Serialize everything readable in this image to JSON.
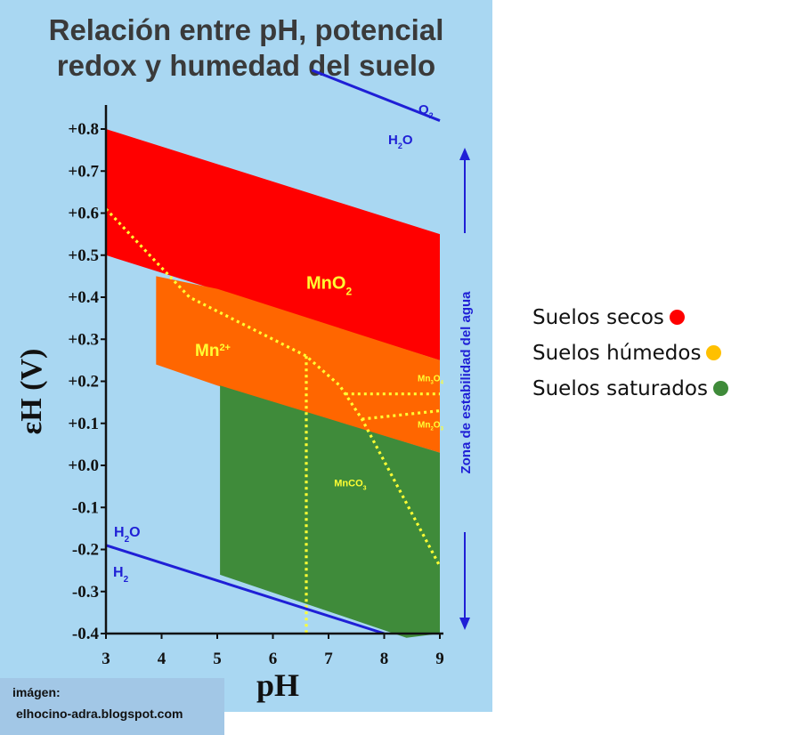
{
  "title_line1": "Relación entre pH, potencial",
  "title_line2": "redox y humedad del suelo",
  "chart_data": {
    "type": "area",
    "xlabel": "pH",
    "ylabel": "εH (V)",
    "xlim": [
      3,
      9
    ],
    "ylim": [
      -0.4,
      0.8
    ],
    "x_ticks": [
      "3",
      "4",
      "5",
      "6",
      "7",
      "8",
      "9"
    ],
    "y_ticks": [
      "+0.8",
      "+0.7",
      "+0.6",
      "+0.5",
      "+0.4",
      "+0.3",
      "+0.2",
      "+0.1",
      "+0.0",
      "-0.1",
      "-0.2",
      "-0.3",
      "-0.4"
    ],
    "regions": [
      {
        "label": "MnO",
        "sub": "2",
        "color": "#ff0000",
        "polygon": [
          [
            3,
            0.8
          ],
          [
            9,
            0.55
          ],
          [
            9,
            0.25
          ],
          [
            3,
            0.5
          ]
        ]
      },
      {
        "label": "Mn",
        "sup": "2+",
        "color": "#ff6600",
        "polygon": [
          [
            3.9,
            0.45
          ],
          [
            5,
            0.42
          ],
          [
            9,
            0.25
          ],
          [
            9,
            0.03
          ],
          [
            5,
            0.19
          ],
          [
            3.9,
            0.24
          ]
        ]
      },
      {
        "label": "MnCO",
        "sub": "3",
        "color": "#3f8b3a",
        "polygon": [
          [
            5.05,
            0.19
          ],
          [
            9,
            0.03
          ],
          [
            9,
            -0.4
          ],
          [
            8.4,
            -0.41
          ],
          [
            5.05,
            -0.26
          ]
        ]
      }
    ],
    "small_labels": [
      {
        "text": "Mn",
        "sub": "3",
        "tail": "O",
        "tail_sub": "4",
        "x": 8.6,
        "y": 0.2
      },
      {
        "text": "Mn",
        "sub": "2",
        "tail": "O",
        "tail_sub": "3",
        "x": 8.6,
        "y": 0.09
      }
    ],
    "dotted_boundaries": [
      [
        [
          3,
          0.61
        ],
        [
          4.5,
          0.4
        ],
        [
          6.6,
          0.26
        ],
        [
          7.2,
          0.19
        ],
        [
          7.6,
          0.11
        ],
        [
          9,
          -0.24
        ]
      ],
      [
        [
          6.6,
          0.26
        ],
        [
          6.6,
          -0.4
        ]
      ],
      [
        [
          7.3,
          0.17
        ],
        [
          9,
          0.17
        ]
      ],
      [
        [
          7.6,
          0.11
        ],
        [
          9,
          0.13
        ]
      ]
    ],
    "water_lines": [
      {
        "top": "O",
        "top_sub": "2",
        "bottom": "H",
        "bottom_sub": "2",
        "bottom_tail": "O",
        "points": [
          [
            6.7,
            0.94
          ],
          [
            9,
            0.82
          ]
        ]
      },
      {
        "top": "H",
        "top_sub": "2",
        "top_tail": "O",
        "bottom": "H",
        "bottom_sub": "2",
        "points": [
          [
            3,
            -0.19
          ],
          [
            8,
            -0.4
          ]
        ]
      }
    ],
    "water_stability_label": "Zona de estabilidad del agua",
    "colors": {
      "plot_bg": "#a9d7f2",
      "dots": "#ffff33",
      "blue": "#1f1fd6"
    }
  },
  "credit_line1": "imágen:",
  "credit_line2": "elhocino-adra.blogspot.com",
  "legend": [
    {
      "label": "Suelos secos",
      "color": "#ff0000"
    },
    {
      "label": "Suelos húmedos",
      "color": "#ffc000"
    },
    {
      "label": "Suelos saturados",
      "color": "#3f8b3a"
    }
  ]
}
